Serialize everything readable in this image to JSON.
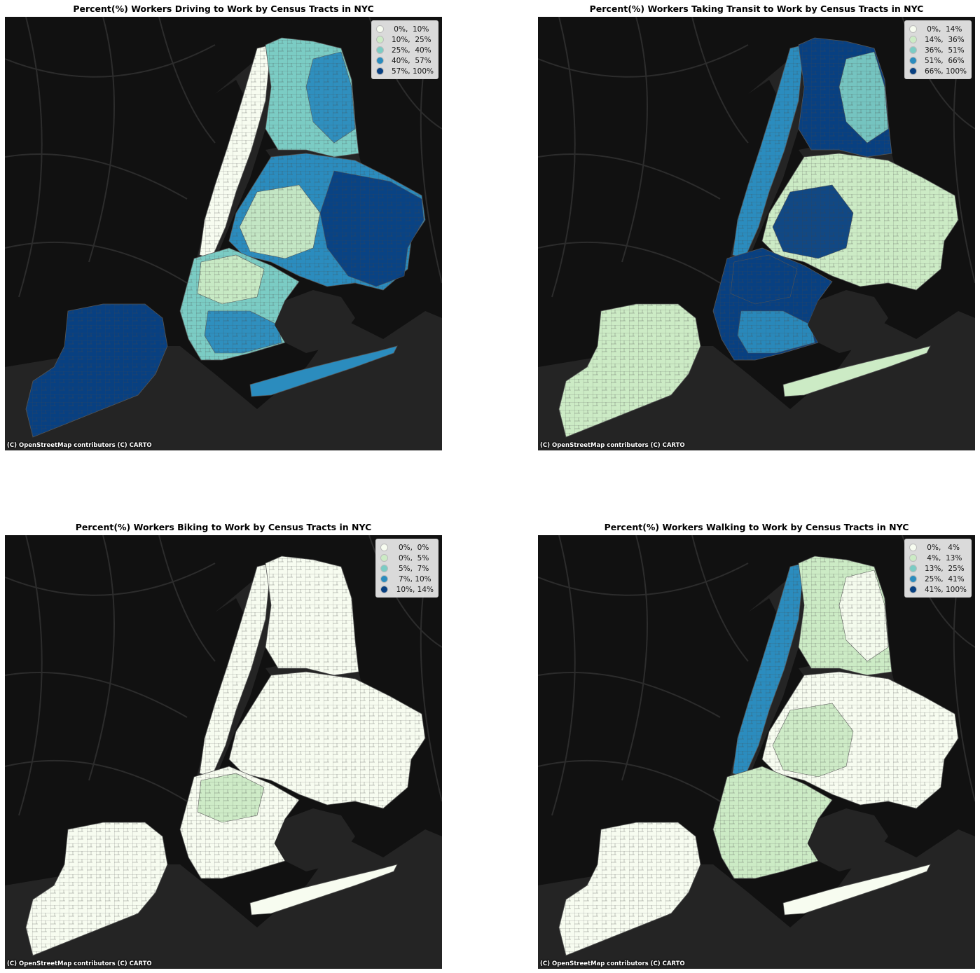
{
  "attribution": "(C) OpenStreetMap contributors (C) CARTO",
  "colors": {
    "bg_dark": "#111111",
    "water": "#242424",
    "park": "#1a1a1a",
    "class1": "#f7fcf0",
    "class2": "#ccebc5",
    "class3": "#7bccc4",
    "class4": "#2b8cbe",
    "class5": "#084081"
  },
  "panels": [
    {
      "id": "driving",
      "title": "Percent(%) Workers Driving to Work by Census Tracts in NYC",
      "legend": [
        "  0%,  10%",
        " 10%,  25%",
        " 25%,  40%",
        " 40%,  57%",
        " 57%, 100%"
      ],
      "borough_classes": {
        "staten_island": 5,
        "bronx": 3,
        "manhattan": 1,
        "queens": 4,
        "brooklyn": 3
      },
      "patches": [
        {
          "area": "queens-east",
          "class": 5
        },
        {
          "area": "bronx-east",
          "class": 4
        },
        {
          "area": "brooklyn-south",
          "class": 4
        },
        {
          "area": "brooklyn-north",
          "class": 2
        },
        {
          "area": "queens-west",
          "class": 2
        }
      ]
    },
    {
      "id": "transit",
      "title": "Percent(%) Workers Taking Transit to Work by Census Tracts in NYC",
      "legend": [
        "  0%,  14%",
        " 14%,  36%",
        " 36%,  51%",
        " 51%,  66%",
        " 66%, 100%"
      ],
      "borough_classes": {
        "staten_island": 2,
        "bronx": 5,
        "manhattan": 4,
        "queens": 2,
        "brooklyn": 5
      },
      "patches": [
        {
          "area": "queens-west",
          "class": 5
        },
        {
          "area": "brooklyn-north",
          "class": 5
        },
        {
          "area": "brooklyn-south",
          "class": 4
        },
        {
          "area": "bronx-east",
          "class": 3
        }
      ]
    },
    {
      "id": "biking",
      "title": "Percent(%) Workers Biking to Work by Census Tracts in NYC",
      "legend": [
        "  0%,  0%",
        "  0%,  5%",
        "  5%,  7%",
        "  7%, 10%",
        " 10%, 14%"
      ],
      "borough_classes": {
        "staten_island": 1,
        "bronx": 1,
        "manhattan": 1,
        "queens": 1,
        "brooklyn": 1
      },
      "patches": [
        {
          "area": "brooklyn-north",
          "class": 2
        }
      ]
    },
    {
      "id": "walking",
      "title": "Percent(%) Workers Walking to Work by Census Tracts in NYC",
      "legend": [
        "  0%,   4%",
        "  4%,  13%",
        " 13%,  25%",
        " 25%,  41%",
        " 41%, 100%"
      ],
      "borough_classes": {
        "staten_island": 1,
        "bronx": 2,
        "manhattan": 4,
        "queens": 1,
        "brooklyn": 2
      },
      "patches": [
        {
          "area": "queens-west",
          "class": 2
        },
        {
          "area": "bronx-east",
          "class": 1
        }
      ]
    }
  ]
}
